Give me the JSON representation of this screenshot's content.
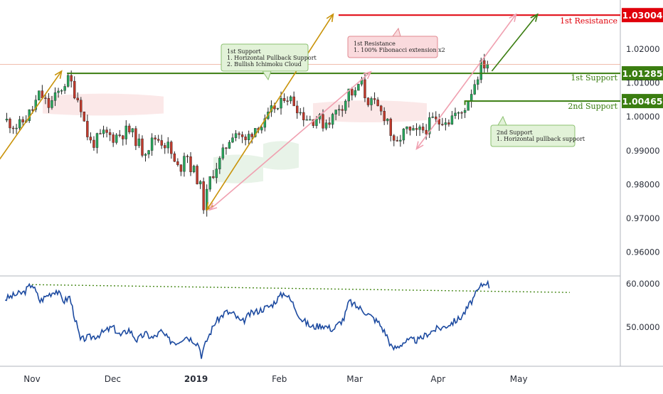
{
  "chart_data": [
    {
      "type": "candlestick",
      "pane": "price",
      "ylim": [
        0.953,
        1.0345
      ],
      "y_ticks": [
        {
          "value": 1.02,
          "label": "1.02000"
        },
        {
          "value": 1.01,
          "label": "1.01000"
        },
        {
          "value": 1.0,
          "label": "1.00000"
        },
        {
          "value": 0.99,
          "label": "0.99000"
        },
        {
          "value": 0.98,
          "label": "0.98000"
        },
        {
          "value": 0.97,
          "label": "0.97000"
        },
        {
          "value": 0.96,
          "label": "0.96000"
        }
      ],
      "x_ticks": [
        {
          "day": 0,
          "label": "Nov",
          "bold": false
        },
        {
          "day": 30,
          "label": "Dec",
          "bold": false
        },
        {
          "day": 61,
          "label": "2019",
          "bold": true
        },
        {
          "day": 92,
          "label": "Feb",
          "bold": false
        },
        {
          "day": 120,
          "label": "Mar",
          "bold": false
        },
        {
          "day": 151,
          "label": "Apr",
          "bold": false
        },
        {
          "day": 181,
          "label": "May",
          "bold": false
        }
      ],
      "levels": [
        {
          "name": "1st Resistance",
          "value": 1.03004,
          "label": "1.03004",
          "color": "#e0000a"
        },
        {
          "name": "1st Support",
          "value": 1.01285,
          "label": "1.01285",
          "color": "#3a7d10"
        },
        {
          "name": "2nd Support",
          "value": 1.00465,
          "label": "1.00465",
          "color": "#3a7d10"
        }
      ],
      "close_series": [
        [
          -10,
          0.999
        ],
        [
          -5,
          0.997
        ],
        [
          0,
          1.002
        ],
        [
          3,
          1.007
        ],
        [
          6,
          1.003
        ],
        [
          9,
          1.006
        ],
        [
          12,
          1.01
        ],
        [
          14,
          1.011
        ],
        [
          16,
          1.007
        ],
        [
          18,
          1.004
        ],
        [
          20,
          0.996
        ],
        [
          22,
          0.992
        ],
        [
          24,
          0.993
        ],
        [
          27,
          0.995
        ],
        [
          30,
          0.994
        ],
        [
          33,
          0.995
        ],
        [
          36,
          0.996
        ],
        [
          39,
          0.993
        ],
        [
          41,
          0.99
        ],
        [
          43,
          0.991
        ],
        [
          46,
          0.994
        ],
        [
          48,
          0.993
        ],
        [
          51,
          0.991
        ],
        [
          53,
          0.986
        ],
        [
          55,
          0.984
        ],
        [
          57,
          0.991
        ],
        [
          59,
          0.985
        ],
        [
          61,
          0.983
        ],
        [
          63,
          0.978
        ],
        [
          64,
          0.973
        ],
        [
          66,
          0.981
        ],
        [
          68,
          0.985
        ],
        [
          70,
          0.987
        ],
        [
          73,
          0.993
        ],
        [
          75,
          0.996
        ],
        [
          77,
          0.995
        ],
        [
          79,
          0.992
        ],
        [
          81,
          0.995
        ],
        [
          84,
          0.998
        ],
        [
          86,
          0.997
        ],
        [
          88,
          1.0
        ],
        [
          90,
          1.003
        ],
        [
          92,
          1.002
        ],
        [
          94,
          1.007
        ],
        [
          96,
          1.005
        ],
        [
          98,
          1.004
        ],
        [
          100,
          1.001
        ],
        [
          102,
          1.0
        ],
        [
          104,
          0.999
        ],
        [
          106,
          1.0
        ],
        [
          108,
          0.998
        ],
        [
          110,
          0.999
        ],
        [
          112,
          1.0
        ],
        [
          114,
          1.003
        ],
        [
          116,
          1.004
        ],
        [
          118,
          1.008
        ],
        [
          120,
          1.006
        ],
        [
          122,
          1.011
        ],
        [
          124,
          1.006
        ],
        [
          126,
          1.004
        ],
        [
          128,
          1.003
        ],
        [
          130,
          1.001
        ],
        [
          132,
          1.0
        ],
        [
          134,
          0.993
        ],
        [
          135,
          0.99
        ],
        [
          137,
          0.994
        ],
        [
          139,
          0.996
        ],
        [
          141,
          0.995
        ],
        [
          143,
          0.995
        ],
        [
          145,
          0.996
        ],
        [
          147,
          0.997
        ],
        [
          149,
          0.999
        ],
        [
          151,
          0.998
        ],
        [
          153,
          1.0
        ],
        [
          155,
          0.999
        ],
        [
          157,
          1.001
        ],
        [
          159,
          1.0
        ],
        [
          161,
          1.003
        ],
        [
          163,
          1.007
        ],
        [
          165,
          1.011
        ],
        [
          167,
          1.015
        ],
        [
          169,
          1.016
        ],
        [
          170,
          1.016
        ]
      ],
      "annotations": [
        {
          "id": "support-box",
          "lines": [
            "1st Support",
            "1. Horizontal Pullback Support",
            "2. Bullish Ichimoku Cloud"
          ]
        },
        {
          "id": "resistance-box",
          "lines": [
            "1st Resistance",
            "1. 100% Fibonacci extension x2"
          ]
        },
        {
          "id": "support2-box",
          "lines": [
            "2nd Support",
            "1. Horizontal pullback support"
          ]
        }
      ]
    },
    {
      "type": "line",
      "pane": "indicator",
      "ylim": [
        41,
        61.8
      ],
      "y_ticks": [
        {
          "value": 60,
          "label": "60.0000"
        },
        {
          "value": 50,
          "label": "50.0000"
        }
      ],
      "series": [
        {
          "values": [
            [
              -10,
              56.5
            ],
            [
              -6,
              57.5
            ],
            [
              -3,
              58.0
            ],
            [
              0,
              60.0
            ],
            [
              3,
              56.0
            ],
            [
              6,
              57.5
            ],
            [
              9,
              58.5
            ],
            [
              12,
              56.0
            ],
            [
              14,
              57.0
            ],
            [
              16,
              52.0
            ],
            [
              18,
              47.0
            ],
            [
              20,
              47.5
            ],
            [
              24,
              48.0
            ],
            [
              27,
              49.0
            ],
            [
              30,
              50.0
            ],
            [
              33,
              48.0
            ],
            [
              36,
              49.5
            ],
            [
              39,
              47.0
            ],
            [
              42,
              48.5
            ],
            [
              45,
              47.5
            ],
            [
              48,
              49.0
            ],
            [
              51,
              47.0
            ],
            [
              54,
              46.5
            ],
            [
              57,
              48.0
            ],
            [
              60,
              47.0
            ],
            [
              62,
              46.0
            ],
            [
              63,
              43.5
            ],
            [
              65,
              47.0
            ],
            [
              68,
              51.0
            ],
            [
              72,
              53.5
            ],
            [
              75,
              53.0
            ],
            [
              78,
              51.0
            ],
            [
              81,
              53.0
            ],
            [
              85,
              54.0
            ],
            [
              89,
              55.0
            ],
            [
              92,
              57.0
            ],
            [
              94,
              58.0
            ],
            [
              97,
              55.5
            ],
            [
              100,
              52.0
            ],
            [
              104,
              50.0
            ],
            [
              108,
              50.5
            ],
            [
              112,
              49.5
            ],
            [
              116,
              52.0
            ],
            [
              118,
              56.0
            ],
            [
              120,
              55.0
            ],
            [
              123,
              54.0
            ],
            [
              126,
              52.5
            ],
            [
              129,
              51.0
            ],
            [
              132,
              48.0
            ],
            [
              134,
              45.0
            ],
            [
              136,
              45.5
            ],
            [
              138,
              46.5
            ],
            [
              141,
              47.0
            ],
            [
              144,
              47.0
            ],
            [
              147,
              48.5
            ],
            [
              150,
              49.5
            ],
            [
              153,
              50.0
            ],
            [
              156,
              51.0
            ],
            [
              159,
              52.0
            ],
            [
              161,
              53.5
            ],
            [
              163,
              55.5
            ],
            [
              165,
              57.5
            ],
            [
              167,
              59.5
            ],
            [
              169,
              60.5
            ],
            [
              170,
              59.5
            ]
          ],
          "color": "#1c4aa0"
        }
      ],
      "trendline": {
        "start": [
          0,
          59.8
        ],
        "end": [
          200,
          58.0
        ],
        "color": "#4a8a1c"
      }
    }
  ]
}
